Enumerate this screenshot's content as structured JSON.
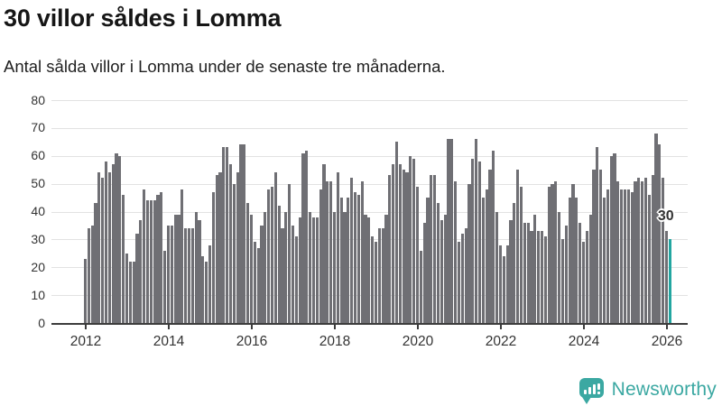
{
  "header": {
    "title": "30 villor såldes i Lomma",
    "subtitle": "Antal sålda villor i Lomma under de senaste tre månaderna."
  },
  "annotation": {
    "last_value_label": "30"
  },
  "branding": {
    "name": "Newsworthy"
  },
  "colors": {
    "bar": "#6f6f74",
    "highlight": "#23a6a1",
    "grid": "#e2e2e2",
    "axis": "#3c3c3c",
    "tick_text": "#333333",
    "logo": "#3ba8a2"
  },
  "chart_data": {
    "type": "bar",
    "title": "30 villor såldes i Lomma",
    "subtitle": "Antal sålda villor i Lomma under de senaste tre månaderna.",
    "frequency": "monthly",
    "start": "2012-01",
    "end": "2026-02",
    "x_tick_labels": [
      "2012",
      "2014",
      "2016",
      "2018",
      "2020",
      "2022",
      "2024",
      "2026"
    ],
    "y_ticks": [
      0,
      10,
      20,
      30,
      40,
      50,
      60,
      70,
      80
    ],
    "ylim": [
      0,
      80
    ],
    "grid": "horizontal",
    "legend": "none",
    "values": [
      23,
      34,
      35,
      43,
      54,
      52,
      58,
      54,
      57,
      61,
      60,
      46,
      25,
      22,
      22,
      32,
      37,
      48,
      44,
      44,
      44,
      46,
      47,
      26,
      35,
      35,
      39,
      39,
      48,
      34,
      34,
      34,
      40,
      37,
      24,
      22,
      28,
      47,
      53,
      54,
      63,
      63,
      57,
      50,
      54,
      64,
      64,
      43,
      39,
      29,
      27,
      35,
      40,
      48,
      49,
      54,
      42,
      34,
      40,
      50,
      35,
      31,
      38,
      61,
      62,
      40,
      38,
      38,
      48,
      57,
      51,
      51,
      40,
      54,
      45,
      40,
      45,
      52,
      47,
      46,
      51,
      39,
      38,
      31,
      29,
      34,
      34,
      39,
      53,
      57,
      65,
      57,
      55,
      54,
      60,
      59,
      49,
      26,
      36,
      45,
      53,
      53,
      43,
      37,
      39,
      66,
      66,
      51,
      29,
      32,
      34,
      50,
      59,
      66,
      58,
      45,
      48,
      55,
      62,
      40,
      28,
      24,
      28,
      37,
      43,
      55,
      49,
      36,
      36,
      33,
      39,
      33,
      33,
      31,
      49,
      50,
      51,
      40,
      30,
      35,
      45,
      50,
      45,
      36,
      29,
      33,
      39,
      55,
      63,
      55,
      45,
      48,
      60,
      61,
      51,
      48,
      48,
      48,
      47,
      51,
      52,
      51,
      52,
      46,
      53,
      68,
      64,
      52,
      33,
      30
    ],
    "highlight": {
      "index": 169,
      "value": 30,
      "label": "30"
    }
  }
}
